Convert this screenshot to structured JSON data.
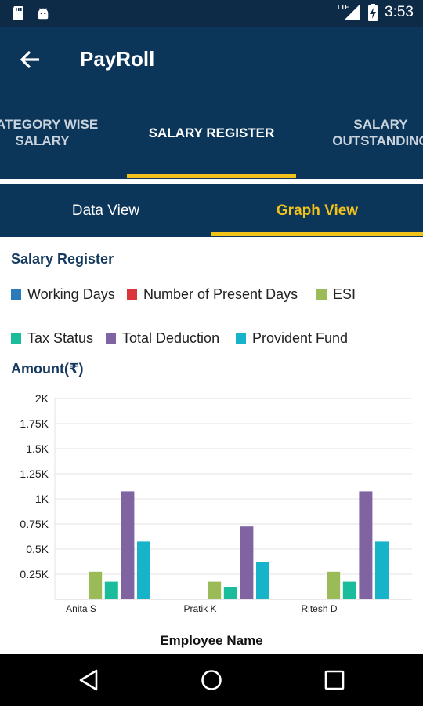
{
  "status_bar": {
    "time": "3:53",
    "network": "LTE",
    "icons": [
      "sd-card-icon",
      "android-icon",
      "signal-icon",
      "battery-charging-icon"
    ]
  },
  "app_bar": {
    "title": "PayRoll",
    "back_icon": "arrow-left-icon"
  },
  "top_tabs": [
    {
      "line1": "CATEGORY WISE",
      "line2": "SALARY",
      "active": false
    },
    {
      "line1": "SALARY REGISTER",
      "line2": "",
      "active": true
    },
    {
      "line1": "SALARY",
      "line2": "OUTSTANDING",
      "active": false
    }
  ],
  "sub_tabs": [
    {
      "label": "Data View",
      "active": false
    },
    {
      "label": "Graph View",
      "active": true
    }
  ],
  "section_title": "Salary Register",
  "amount_label": "Amount(₹)",
  "legend": [
    {
      "label": "Working Days",
      "color": "#2b7bb9"
    },
    {
      "label": "Number of Present Days",
      "color": "#d9353b"
    },
    {
      "label": "ESI",
      "color": "#9bbb59"
    },
    {
      "label": "Tax Status",
      "color": "#1abc9c"
    },
    {
      "label": "Total Deduction",
      "color": "#8064a2"
    },
    {
      "label": "Provident Fund",
      "color": "#17b3c8"
    }
  ],
  "chart_data": {
    "type": "bar",
    "categories": [
      "Anita S",
      "Pratik K",
      "Ritesh D"
    ],
    "xlabel": "Employee Name",
    "ylabel": "Amount(₹)",
    "ylim": [
      0,
      2000
    ],
    "y_ticks": [
      "0.25K",
      "0.5K",
      "0.75K",
      "1K",
      "1.25K",
      "1.5K",
      "1.75K",
      "2K"
    ],
    "y_tick_values": [
      250,
      500,
      750,
      1000,
      1250,
      1500,
      1750,
      2000
    ],
    "grid": true,
    "legend_position": "top",
    "series": [
      {
        "name": "Working Days",
        "color": "#2b7bb9",
        "values": [
          0,
          0,
          0
        ]
      },
      {
        "name": "Number of Present Days",
        "color": "#d9353b",
        "values": [
          0,
          0,
          0
        ]
      },
      {
        "name": "ESI",
        "color": "#9bbb59",
        "values": [
          275,
          175,
          275
        ]
      },
      {
        "name": "Tax Status",
        "color": "#1abc9c",
        "values": [
          175,
          125,
          175
        ]
      },
      {
        "name": "Total Deduction",
        "color": "#8064a2",
        "values": [
          1075,
          725,
          1075
        ]
      },
      {
        "name": "Provident Fund",
        "color": "#17b3c8",
        "values": [
          575,
          375,
          575
        ]
      }
    ]
  },
  "nav_bar": {
    "buttons": [
      "back-triangle-icon",
      "home-circle-icon",
      "recents-square-icon"
    ]
  }
}
